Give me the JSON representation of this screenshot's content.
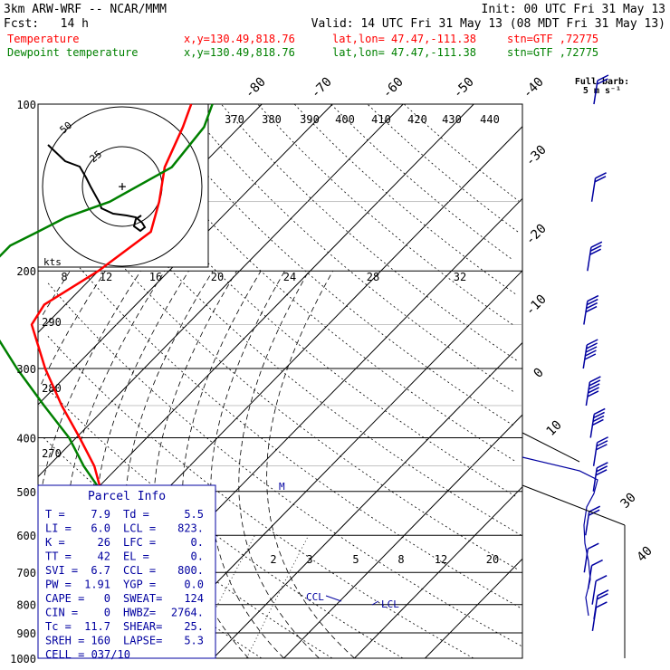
{
  "header": {
    "model": "3km ARW-WRF -- NCAR/MMM",
    "init": "Init: 00 UTC Fri 31 May 13",
    "fcst": "Fcst:   14 h",
    "valid": "Valid: 14 UTC Fri 31 May 13 (08 MDT Fri 31 May 13)"
  },
  "legend": [
    {
      "label": "Temperature",
      "xy": "x,y=130.49,818.76",
      "latlon": "lat,lon= 47.47,-111.38",
      "stn": "stn=GTF ,72775",
      "color": "#ff0000"
    },
    {
      "label": "Dewpoint temperature",
      "xy": "x,y=130.49,818.76",
      "latlon": "lat,lon= 47.47,-111.38",
      "stn": "stn=GTF ,72775",
      "color": "#008000"
    }
  ],
  "barb_label": {
    "line1": "Full barb:",
    "line2": "5 m s⁻¹"
  },
  "hodograph": {
    "units": "kts",
    "ring_labels": [
      "25",
      "50"
    ]
  },
  "parcel_info": {
    "title": "Parcel Info",
    "rows": [
      [
        "T  =",
        "7.9",
        "Td =",
        "5.5"
      ],
      [
        "LI =",
        "6.0",
        "LCL =",
        "823."
      ],
      [
        "K  =",
        "26",
        "LFC =",
        "0."
      ],
      [
        "TT =",
        "42",
        "EL  =",
        "0."
      ],
      [
        "SVI =",
        "6.7",
        "CCL =",
        "800."
      ],
      [
        "PW =",
        "1.91",
        "YGP =",
        "0.0"
      ],
      [
        "CAPE =",
        "0",
        "SWEAT=",
        "124"
      ],
      [
        "CIN  =",
        "0",
        "HWBZ=",
        "2764."
      ],
      [
        "Tc  =",
        "11.7",
        "SHEAR=",
        "25."
      ],
      [
        "SREH =",
        "160",
        "LAPSE=",
        "5.3"
      ],
      [
        "CELL = 037/10",
        "",
        "",
        ""
      ]
    ]
  },
  "annotations": {
    "ccl": "CCL",
    "lcl": "LCL",
    "m": "M"
  },
  "colors": {
    "temperature": "#ff0000",
    "dewpoint": "#008000",
    "header": "#000000",
    "barbs": "#0000a0",
    "parcel_box": "#0000a0",
    "grid": "#000000"
  },
  "chart_data": {
    "type": "line",
    "title": "",
    "diagram": "Skew-T log-P",
    "y_axis": {
      "label": "",
      "scale": "log",
      "ticks": [
        100,
        200,
        300,
        400,
        500,
        600,
        700,
        800,
        900,
        1000
      ],
      "range": [
        1000,
        100
      ]
    },
    "isotherm_labels": [
      "-80",
      "-70",
      "-60",
      "-50",
      "-40",
      "-30",
      "-20",
      "-10",
      "0",
      "10",
      "30",
      "40"
    ],
    "isentrope_labels": [
      "370",
      "380",
      "390",
      "400",
      "410",
      "420",
      "430",
      "440",
      "290",
      "280",
      "270"
    ],
    "mixing_ratio_labels": [
      "8",
      "12",
      "16",
      "20",
      "24",
      "28",
      "32",
      "2",
      "3",
      "5",
      "8",
      "12",
      "20"
    ],
    "series": [
      {
        "name": "Temperature",
        "pressure": [
          893,
          870,
          850,
          830,
          800,
          700,
          600,
          500,
          450,
          400,
          350,
          300,
          250,
          230,
          200,
          170,
          150,
          130,
          110,
          100
        ],
        "temperature": [
          7.9,
          7.0,
          7.5,
          6.0,
          4.0,
          -2.5,
          -10.0,
          -19.0,
          -23.5,
          -29.5,
          -36.5,
          -44.0,
          -52.0,
          -53.0,
          -50.0,
          -48.0,
          -51.0,
          -55.0,
          -58.0,
          -60.0
        ]
      },
      {
        "name": "Dewpoint temperature",
        "pressure": [
          893,
          870,
          850,
          800,
          700,
          600,
          550,
          500,
          450,
          400,
          350,
          300,
          250,
          200,
          180,
          170,
          160,
          150,
          130,
          110,
          100
        ],
        "temperature": [
          5.5,
          5.5,
          5.0,
          3.5,
          -3.5,
          -11.0,
          -14.0,
          -19.0,
          -25.0,
          -31.0,
          -39.0,
          -48.0,
          -58.0,
          -66.0,
          -66.0,
          -64.0,
          -62.0,
          -58.0,
          -54.0,
          -55.0,
          -57.0
        ]
      }
    ],
    "wind_profile_kts": [
      {
        "p": 893,
        "spd": 12
      },
      {
        "p": 850,
        "spd": 15
      },
      {
        "p": 800,
        "spd": 12
      },
      {
        "p": 750,
        "spd": 10
      },
      {
        "p": 700,
        "spd": 14
      },
      {
        "p": 600,
        "spd": 20
      },
      {
        "p": 500,
        "spd": 25
      },
      {
        "p": 450,
        "spd": 30
      },
      {
        "p": 400,
        "spd": 40
      },
      {
        "p": 350,
        "spd": 45
      },
      {
        "p": 300,
        "spd": 50
      },
      {
        "p": 250,
        "spd": 40
      },
      {
        "p": 200,
        "spd": 25
      },
      {
        "p": 150,
        "spd": 20
      },
      {
        "p": 100,
        "spd": 15
      }
    ]
  }
}
